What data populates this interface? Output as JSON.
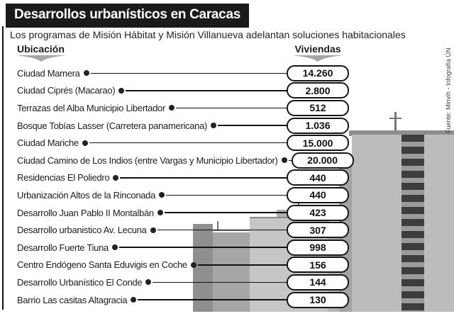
{
  "title": "Desarrollos urbanísticos en Caracas",
  "subtitle": "Los programas de Misión Hábitat y Misión Villanueva adelantan soluciones habitacionales",
  "columns": {
    "location": "Ubicación",
    "units": "Viviendas"
  },
  "source": "Fuente: Minvih - Infografía ÚN",
  "colors": {
    "title_bg": "#1a1a1a",
    "title_text": "#ffffff",
    "line": "#111111",
    "pill_border": "#151515",
    "pill_bg": "#ffffff",
    "swoosh": "#a6a6a6"
  },
  "chart_data": {
    "type": "table",
    "title": "Desarrollos urbanísticos en Caracas",
    "columns": [
      "Ubicación",
      "Viviendas"
    ],
    "rows": [
      {
        "label": "Ciudad Mamera",
        "value": "14.260"
      },
      {
        "label": "Ciudad Ciprés (Macarao)",
        "value": "2.800"
      },
      {
        "label": "Terrazas del Alba Municipio Libertador",
        "value": "512"
      },
      {
        "label": "Bosque Tobías Lasser (Carretera panamericana)",
        "value": "1.036"
      },
      {
        "label": "Ciudad Mariche",
        "value": "15.000"
      },
      {
        "label": "Ciudad Camino de Los Indios (entre Vargas y Municipio Libertador)",
        "value": "20.000"
      },
      {
        "label": "Residencias El Poliedro",
        "value": "440"
      },
      {
        "label": "Urbanización Altos de la Rinconada",
        "value": "440"
      },
      {
        "label": "Desarrollo Juan Pablo II Montalbán",
        "value": "423"
      },
      {
        "label": "Desarrollo urbanistico Av. Lecuna",
        "value": "307"
      },
      {
        "label": "Desarrollo Fuerte Tiuna",
        "value": "998"
      },
      {
        "label": "Centro Endógeno Santa Eduvigis en Coche",
        "value": "156"
      },
      {
        "label": "Desarrollo Urbanístico El Conde",
        "value": "144"
      },
      {
        "label": "Barrio Las casitas Altagracia",
        "value": "130"
      }
    ]
  }
}
